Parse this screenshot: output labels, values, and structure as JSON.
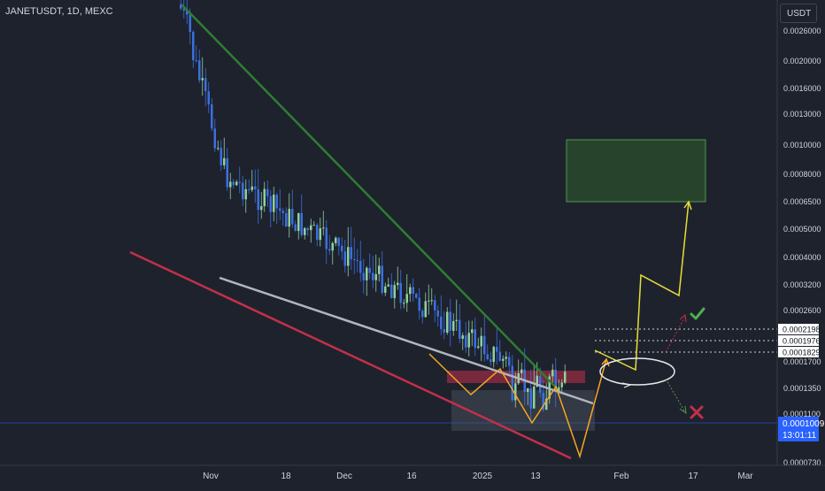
{
  "symbol": "JANETUSDT, 1D, MEXC",
  "currency": "USDT",
  "colors": {
    "background": "#1e222d",
    "up": "#8fd19e",
    "down": "#3b6fe0",
    "axis_text": "#d1d4dc",
    "grid": "#262a35",
    "green_trendline": "#2e7d32",
    "red_trendline": "#c2304a",
    "white_trendline": "#b2b5be",
    "orange_path": "#f5a623",
    "yellow_path": "#e6df35",
    "target_box": "#3f7a3a",
    "current_price_tag": "#2962ff"
  },
  "chart_data": {
    "type": "candlestick",
    "scale": "log",
    "y_tick_labels": [
      "0.0026000",
      "0.0020000",
      "0.0016000",
      "0.0013000",
      "0.0010000",
      "0.0008000",
      "0.0006500",
      "0.0005000",
      "0.0004000",
      "0.0003200",
      "0.0002600",
      "0.0001700",
      "0.0001350",
      "0.0001100",
      "0.0000730"
    ],
    "x_tick_labels": [
      "Nov",
      "18",
      "Dec",
      "16",
      "2025",
      "13",
      "Feb",
      "17",
      "Mar"
    ],
    "level_labels": [
      "0.0002198",
      "0.0001976",
      "0.0001829"
    ],
    "current_price": "0.0001009",
    "countdown": "13:01:11",
    "grid": false,
    "annotations": [
      "green target box",
      "green check mark",
      "red cross mark",
      "white ellipse",
      "green descending trendline",
      "red support trendline",
      "white trendline",
      "orange projected path",
      "yellow projected path"
    ]
  }
}
